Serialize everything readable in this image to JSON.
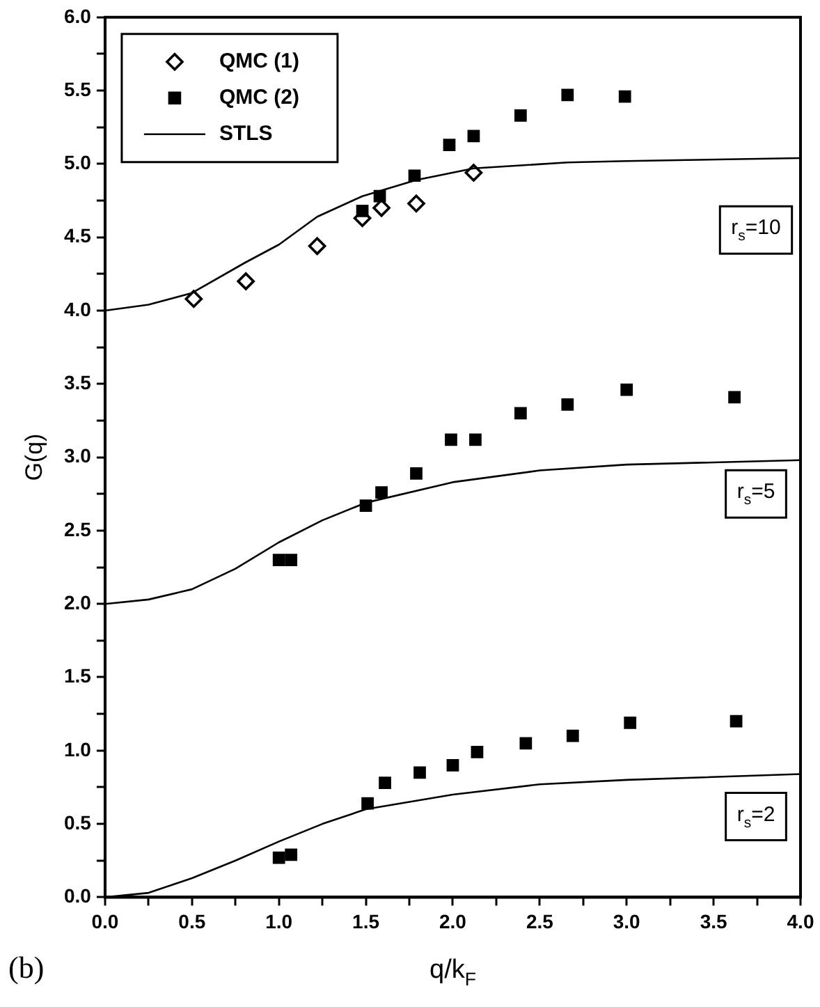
{
  "chart_data": {
    "type": "scatter",
    "xlabel": "q/k$_{F}$",
    "ylabel": "G(q)",
    "xlim": [
      0,
      4
    ],
    "ylim": [
      0,
      6
    ],
    "xticks": [
      {
        "value": 0,
        "label": "0.0"
      },
      {
        "value": 0.25,
        "label": null
      },
      {
        "value": 0.5,
        "label": "0.5"
      },
      {
        "value": 0.75,
        "label": null
      },
      {
        "value": 1,
        "label": "1.0"
      },
      {
        "value": 1.25,
        "label": null
      },
      {
        "value": 1.5,
        "label": "1.5"
      },
      {
        "value": 1.75,
        "label": null
      },
      {
        "value": 2,
        "label": "2.0"
      },
      {
        "value": 2.25,
        "label": null
      },
      {
        "value": 2.5,
        "label": "2.5"
      },
      {
        "value": 2.75,
        "label": null
      },
      {
        "value": 3,
        "label": "3.0"
      },
      {
        "value": 3.25,
        "label": null
      },
      {
        "value": 3.5,
        "label": "3.5"
      },
      {
        "value": 3.75,
        "label": null
      },
      {
        "value": 4,
        "label": "4.0"
      }
    ],
    "yticks": [
      {
        "value": 0,
        "label": "0.0"
      },
      {
        "value": 0.25,
        "label": null
      },
      {
        "value": 0.5,
        "label": "0.5"
      },
      {
        "value": 0.75,
        "label": null
      },
      {
        "value": 1,
        "label": "1.0"
      },
      {
        "value": 1.25,
        "label": null
      },
      {
        "value": 1.5,
        "label": "1.5"
      },
      {
        "value": 1.75,
        "label": null
      },
      {
        "value": 2,
        "label": "2.0"
      },
      {
        "value": 2.25,
        "label": null
      },
      {
        "value": 2.5,
        "label": "2.5"
      },
      {
        "value": 2.75,
        "label": null
      },
      {
        "value": 3,
        "label": "3.0"
      },
      {
        "value": 3.25,
        "label": null
      },
      {
        "value": 3.5,
        "label": "3.5"
      },
      {
        "value": 3.75,
        "label": null
      },
      {
        "value": 4,
        "label": "4.0"
      },
      {
        "value": 4.25,
        "label": null
      },
      {
        "value": 4.5,
        "label": "4.5"
      },
      {
        "value": 4.75,
        "label": null
      },
      {
        "value": 5,
        "label": "5.0"
      },
      {
        "value": 5.25,
        "label": null
      },
      {
        "value": 5.5,
        "label": "5.5"
      },
      {
        "value": 5.75,
        "label": null
      },
      {
        "value": 6,
        "label": "6.0"
      }
    ],
    "grid": false,
    "legend": "top left",
    "series": [
      {
        "name": "QMC (1)",
        "marker": "diamond",
        "color": "#000000",
        "x": [
          0.51,
          0.81,
          1.22,
          1.48,
          1.59,
          1.79,
          2.12
        ],
        "values": [
          4.08,
          4.2,
          4.44,
          4.63,
          4.7,
          4.73,
          4.94
        ]
      },
      {
        "name": "QMC (2)",
        "marker": "square",
        "color": "#000000",
        "x": [
          1.48,
          1.58,
          1.78,
          1.98,
          2.12,
          2.39,
          2.66,
          2.99,
          1.0,
          1.07,
          1.5,
          1.59,
          1.79,
          1.99,
          2.13,
          2.39,
          2.66,
          3.0,
          3.62,
          1.0,
          1.07,
          1.51,
          1.61,
          1.81,
          2.0,
          2.14,
          2.42,
          2.69,
          3.02,
          3.63
        ],
        "values": [
          4.68,
          4.78,
          4.92,
          5.13,
          5.19,
          5.33,
          5.47,
          5.46,
          2.3,
          2.3,
          2.67,
          2.76,
          2.89,
          3.12,
          3.12,
          3.3,
          3.36,
          3.46,
          3.41,
          0.27,
          0.29,
          0.64,
          0.78,
          0.85,
          0.9,
          0.99,
          1.05,
          1.1,
          1.19,
          1.2
        ]
      },
      {
        "name": "STLS",
        "type": "line",
        "marker": "none",
        "line_style": "solid",
        "color": "#000000",
        "x": [
          0,
          0.25,
          0.5,
          0.81,
          1.0,
          1.22,
          1.48,
          1.79,
          2.12,
          2.66,
          3.0,
          4.0
        ],
        "values": [
          4.0,
          4.04,
          4.12,
          4.33,
          4.45,
          4.64,
          4.78,
          4.89,
          4.97,
          5.01,
          5.02,
          5.04
        ]
      },
      {
        "type": "line",
        "marker": "none",
        "line_style": "solid",
        "color": "#000000",
        "x": [
          0,
          0.25,
          0.5,
          0.75,
          1.0,
          1.25,
          1.5,
          2.0,
          2.5,
          3.0,
          4.0
        ],
        "values": [
          2.0,
          2.03,
          2.1,
          2.24,
          2.42,
          2.57,
          2.69,
          2.83,
          2.91,
          2.95,
          2.98
        ]
      },
      {
        "type": "line",
        "marker": "none",
        "line_style": "solid",
        "color": "#000000",
        "x": [
          0,
          0.25,
          0.5,
          0.75,
          1.0,
          1.25,
          1.5,
          2.0,
          2.5,
          3.0,
          4.0
        ],
        "values": [
          0,
          0.03,
          0.13,
          0.25,
          0.38,
          0.5,
          0.6,
          0.7,
          0.77,
          0.8,
          0.84
        ]
      }
    ],
    "annotations": [
      "r$_{s}$=10",
      "r$_{s}$=5",
      "r$_{s}$=2",
      "(b)"
    ]
  }
}
